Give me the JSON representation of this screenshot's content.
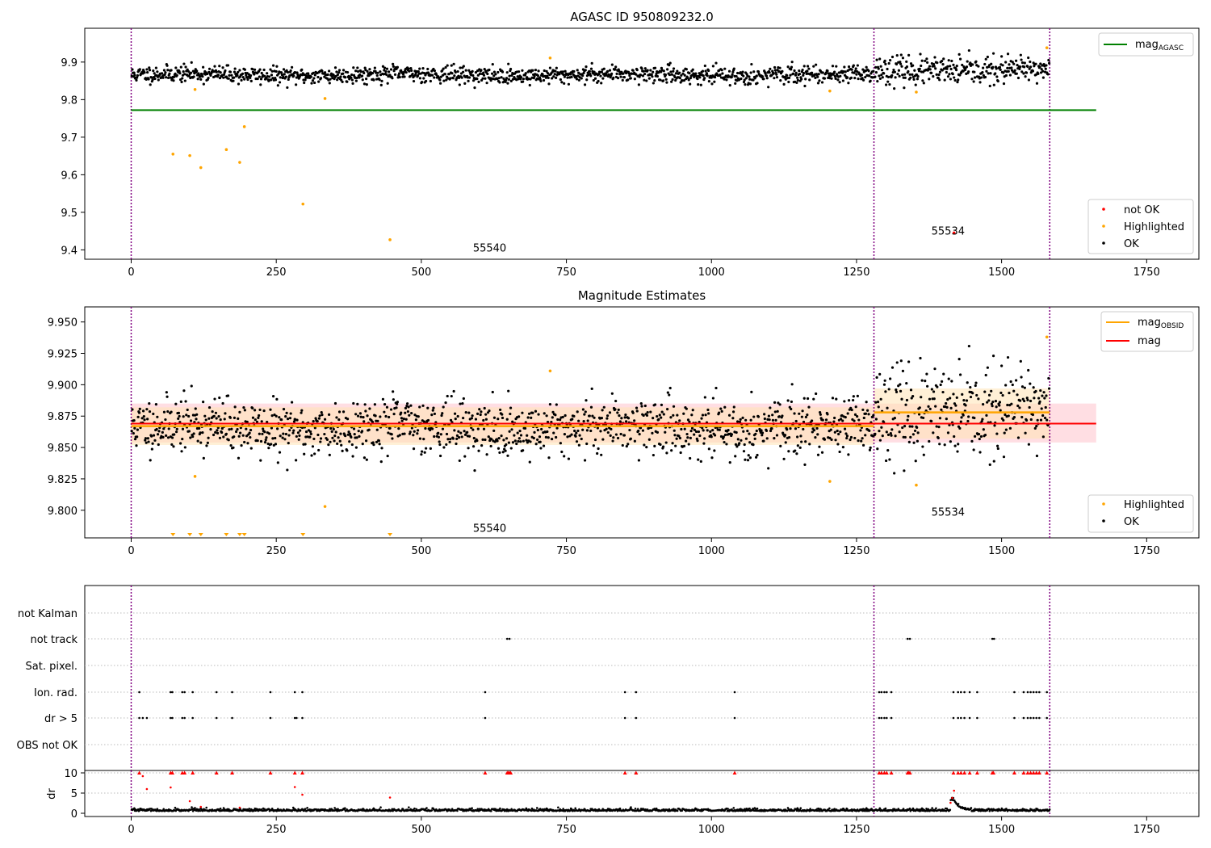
{
  "figure": {
    "title_top": "AGASC ID 950809232.0",
    "title_mid": "Magnitude Estimates"
  },
  "colors": {
    "ok": "#000000",
    "not_ok": "#ff0000",
    "highlighted": "#ffa500",
    "agasc_line": "#008000",
    "mag_line": "#ff0000",
    "obsid_line": "#ffa500",
    "obsid_band": "#ffe4b5",
    "mag_band": "#ffb6c1",
    "separator": "#800080"
  },
  "chart_data": [
    {
      "type": "scatter",
      "title": "AGASC ID 950809232.0",
      "xlim": [
        -80,
        1840
      ],
      "ylim": [
        9.375,
        9.99
      ],
      "xticks": [
        0,
        250,
        500,
        750,
        1000,
        1250,
        1500,
        1750
      ],
      "yticks": [
        9.4,
        9.5,
        9.6,
        9.7,
        9.8,
        9.9
      ],
      "obs_boundaries": [
        0,
        1280,
        1583
      ],
      "obsid_labels": [
        {
          "text": "55540",
          "x": 640,
          "y": 9.4
        },
        {
          "text": "55534",
          "x": 1430,
          "y": 9.445
        }
      ],
      "mag_agasc": {
        "value": 9.772,
        "x_range": [
          0,
          1663
        ]
      },
      "segments": [
        {
          "x_range": [
            0,
            1280
          ],
          "mean": 9.866,
          "std": 0.011,
          "seed": 11
        },
        {
          "x_range": [
            1280,
            1583
          ],
          "mean": 9.878,
          "std": 0.018,
          "seed": 23
        }
      ],
      "highlighted": {
        "x": [
          72,
          101,
          110,
          120,
          164,
          187,
          195,
          296,
          334,
          446,
          722,
          1204,
          1353,
          1578
        ],
        "y": [
          9.655,
          9.651,
          9.827,
          9.619,
          9.667,
          9.633,
          9.728,
          9.522,
          9.803,
          9.427,
          9.911,
          9.823,
          9.82,
          9.938
        ]
      },
      "not_ok": {
        "x": [
          1418
        ],
        "y": [
          9.445
        ]
      },
      "legend_lines": [
        {
          "label": "mag",
          "sub": "AGASC",
          "color": "#008000"
        }
      ],
      "legend_markers": [
        {
          "label": "not OK",
          "color": "#ff0000"
        },
        {
          "label": "Highlighted",
          "color": "#ffa500"
        },
        {
          "label": "OK",
          "color": "#000000"
        }
      ]
    },
    {
      "type": "scatter",
      "title": "Magnitude Estimates",
      "xlim": [
        -80,
        1840
      ],
      "ylim": [
        9.778,
        9.962
      ],
      "xticks": [
        0,
        250,
        500,
        750,
        1000,
        1250,
        1500,
        1750
      ],
      "yticks": [
        9.8,
        9.825,
        9.85,
        9.875,
        9.9,
        9.925,
        9.95
      ],
      "mag": {
        "value": 9.869,
        "band": [
          9.854,
          9.885
        ],
        "x_range": [
          0,
          1663
        ]
      },
      "mag_obsid": [
        {
          "x_range": [
            0,
            1280
          ],
          "value": 9.867,
          "band": [
            9.852,
            9.882
          ]
        },
        {
          "x_range": [
            1280,
            1583
          ],
          "value": 9.878,
          "band": [
            9.857,
            9.897
          ]
        }
      ],
      "offscale_markers_x": [
        72,
        101,
        120,
        164,
        187,
        195,
        296,
        446
      ],
      "obsid_labels": [
        {
          "text": "55540",
          "x": 640,
          "y": 9.784
        },
        {
          "text": "55534",
          "x": 1430,
          "y": 9.797
        }
      ],
      "legend_lines": [
        {
          "label": "mag",
          "sub": "OBSID",
          "color": "#ffa500"
        },
        {
          "label": "mag",
          "sub": "",
          "color": "#ff0000"
        }
      ],
      "legend_markers": [
        {
          "label": "Highlighted",
          "color": "#ffa500"
        },
        {
          "label": "OK",
          "color": "#000000"
        }
      ]
    },
    {
      "type": "scatter",
      "categories": [
        "not Kalman",
        "not track",
        "Sat. pixel.",
        "Ion. rad.",
        "dr > 5",
        "OBS not OK"
      ],
      "flag_x": {
        "not track": [
          648,
          652,
          1338,
          1342,
          1484,
          1487
        ],
        "Ion. rad.": [
          14,
          68,
          71,
          88,
          92,
          106,
          147,
          174,
          240,
          282,
          295,
          610,
          851,
          870,
          1040,
          1289,
          1293,
          1298,
          1302,
          1310,
          1417,
          1425,
          1430,
          1436,
          1445,
          1458,
          1522,
          1538,
          1545,
          1550,
          1555,
          1560,
          1565,
          1578
        ],
        "dr > 5": [
          14,
          20,
          27,
          68,
          71,
          88,
          92,
          106,
          147,
          174,
          240,
          282,
          285,
          295,
          610,
          851,
          870,
          1040,
          1289,
          1293,
          1298,
          1302,
          1310,
          1417,
          1425,
          1430,
          1436,
          1445,
          1458,
          1522,
          1538,
          1545,
          1550,
          1555,
          1560,
          1565,
          1578
        ]
      }
    },
    {
      "type": "scatter",
      "ylabel": "dr",
      "xlim": [
        -80,
        1840
      ],
      "ylim": [
        -0.8,
        10.6
      ],
      "yticks": [
        0,
        5,
        10
      ],
      "xticks": [
        0,
        250,
        500,
        750,
        1000,
        1250,
        1500,
        1750
      ],
      "red_x": [
        14,
        68,
        71,
        88,
        92,
        106,
        147,
        174,
        240,
        282,
        295,
        610,
        648,
        650,
        652,
        654,
        851,
        870,
        1040,
        1289,
        1293,
        1298,
        1302,
        1310,
        1338,
        1340,
        1342,
        1417,
        1425,
        1430,
        1436,
        1445,
        1458,
        1484,
        1486,
        1522,
        1538,
        1545,
        1550,
        1555,
        1560,
        1565,
        1578
      ],
      "red_pts": {
        "x": [
          20,
          27,
          68,
          101,
          120,
          282,
          295,
          446,
          1418,
          1415,
          1412,
          187
        ],
        "y": [
          9.2,
          6.0,
          6.4,
          3.0,
          1.6,
          6.5,
          4.6,
          3.9,
          5.6,
          3.8,
          2.6,
          1.4
        ]
      },
      "bump": {
        "center": 1418,
        "height": 2.6,
        "width": 10
      }
    }
  ]
}
